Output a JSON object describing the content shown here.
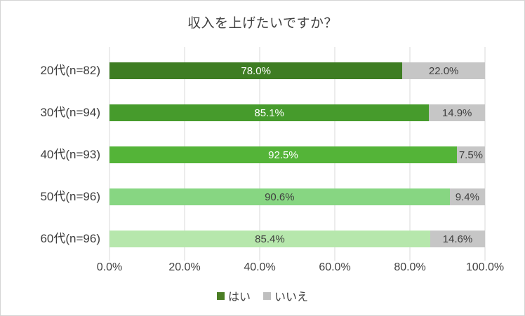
{
  "chart_data": {
    "type": "bar",
    "orientation": "horizontal",
    "stacked": true,
    "title": "収入を上げたいですか？",
    "categories": [
      "20代(n=82)",
      "30代(n=94)",
      "40代(n=93)",
      "50代(n=96)",
      "60代(n=96)"
    ],
    "series": [
      {
        "name": "はい",
        "values": [
          78.0,
          85.1,
          92.5,
          90.6,
          85.4
        ],
        "labels": [
          "78.0%",
          "85.1%",
          "92.5%",
          "90.6%",
          "85.4%"
        ],
        "colors": [
          "#3E7D23",
          "#469B2C",
          "#54B438",
          "#87D682",
          "#B6E7AC"
        ],
        "label_colors": [
          "#ffffff",
          "#ffffff",
          "#ffffff",
          "#404040",
          "#404040"
        ]
      },
      {
        "name": "いいえ",
        "values": [
          22.0,
          14.9,
          7.5,
          9.4,
          14.6
        ],
        "labels": [
          "22.0%",
          "14.9%",
          "7.5%",
          "9.4%",
          "14.6%"
        ],
        "color": "#C6C6C6",
        "label_color": "#404040"
      }
    ],
    "xlim": [
      0,
      100
    ],
    "x_ticks": [
      "0.0%",
      "20.0%",
      "40.0%",
      "60.0%",
      "80.0%",
      "100.0%"
    ],
    "grid": true,
    "gridline_color": "#d9d9d9",
    "legend_position": "bottom",
    "legend": [
      {
        "label": "はい",
        "color": "#4A7D23"
      },
      {
        "label": "いいえ",
        "color": "#BFBFBF"
      }
    ]
  }
}
